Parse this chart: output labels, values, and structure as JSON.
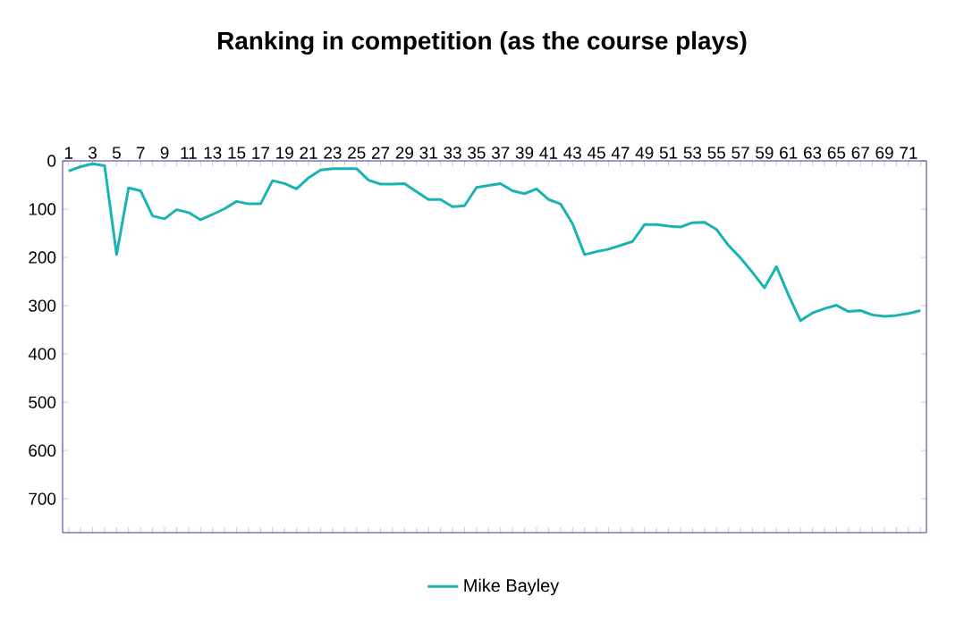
{
  "chart_data": {
    "type": "line",
    "title": "Ranking in competition (as the course plays)",
    "categories": [
      "1",
      null,
      "3",
      null,
      "5",
      null,
      "7",
      null,
      "9",
      null,
      "11",
      null,
      "13",
      null,
      "15",
      null,
      "17",
      null,
      "19",
      null,
      "21",
      null,
      "23",
      null,
      "25",
      null,
      "27",
      null,
      "29",
      null,
      "31",
      null,
      "33",
      null,
      "35",
      null,
      "37",
      null,
      "39",
      null,
      "41",
      null,
      "43",
      null,
      "45",
      null,
      "47",
      null,
      "49",
      null,
      "51",
      null,
      "53",
      null,
      "55",
      null,
      "57",
      null,
      "59",
      null,
      "61",
      null,
      "63",
      null,
      "65",
      null,
      "67",
      null,
      "69",
      null,
      "71",
      null
    ],
    "series": [
      {
        "name": "Mike Bayley",
        "color": "#1ab3b3",
        "values": [
          21,
          12,
          6,
          10,
          194,
          56,
          62,
          114,
          120,
          101,
          107,
          122,
          111,
          99,
          84,
          89,
          89,
          41,
          47,
          58,
          35,
          19,
          16,
          16,
          16,
          40,
          48,
          48,
          47,
          64,
          80,
          80,
          95,
          93,
          55,
          51,
          47,
          62,
          68,
          58,
          80,
          89,
          130,
          194,
          188,
          183,
          175,
          167,
          132,
          132,
          135,
          137,
          128,
          127,
          142,
          175,
          201,
          231,
          263,
          219,
          278,
          331,
          315,
          306,
          299,
          312,
          310,
          319,
          322,
          320,
          316,
          310
        ]
      }
    ],
    "ylim": [
      770,
      0
    ],
    "yticks": [
      0,
      100,
      200,
      300,
      400,
      500,
      600,
      700
    ],
    "grid": false,
    "legend": "bottom",
    "marker": "none",
    "line_style": "solid"
  }
}
